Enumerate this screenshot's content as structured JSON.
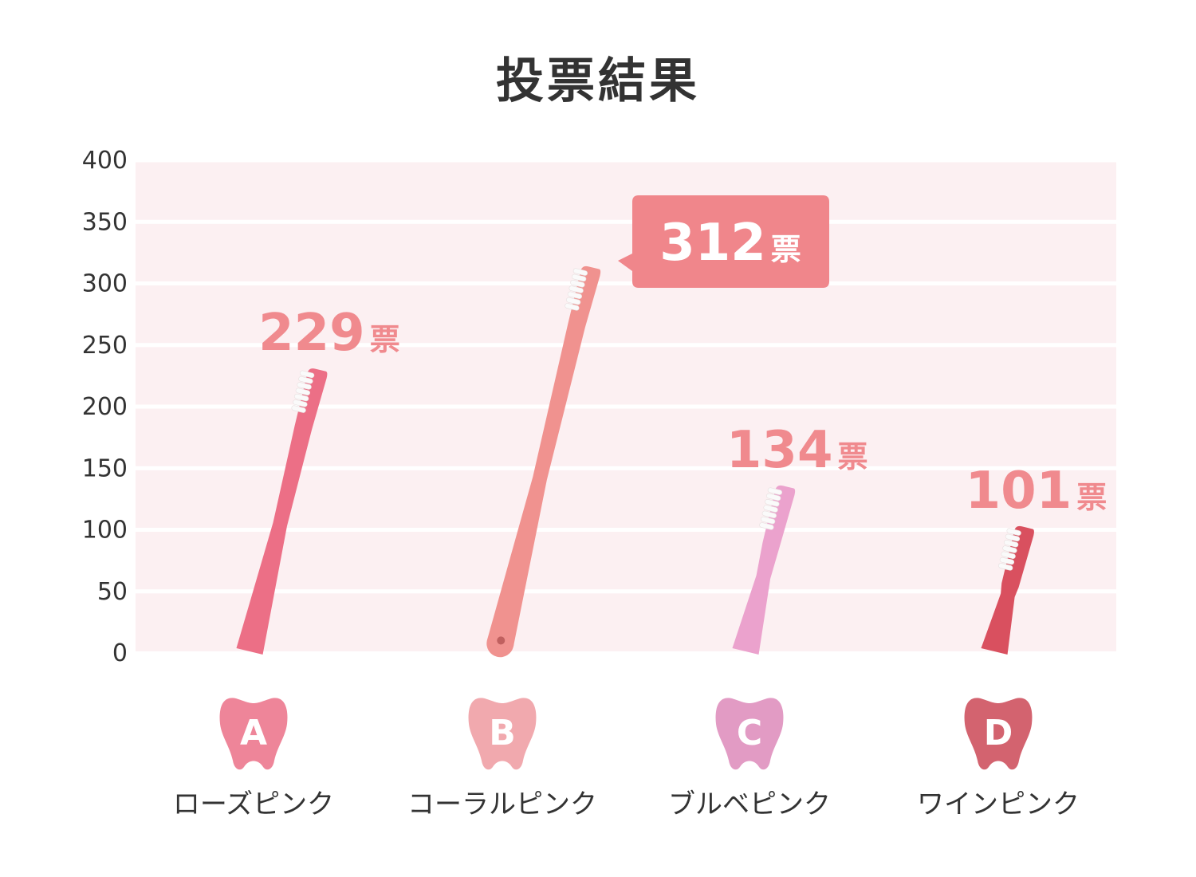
{
  "chart_data": {
    "type": "bar",
    "title": "投票結果",
    "ylim": [
      0,
      400
    ],
    "yticks": [
      0,
      50,
      100,
      150,
      200,
      250,
      300,
      350,
      400
    ],
    "grid": true,
    "unit": "票",
    "categories": [
      {
        "letter": "A",
        "name": "ローズピンク",
        "value": 229,
        "tooth_color": "#ee8599",
        "brush_color": "#ec6f86"
      },
      {
        "letter": "B",
        "name": "コーラルピンク",
        "value": 312,
        "tooth_color": "#f1a9ae",
        "brush_color": "#f0928f",
        "highlight": true
      },
      {
        "letter": "C",
        "name": "ブルベピンク",
        "value": 134,
        "tooth_color": "#e29bc4",
        "brush_color": "#eba2cd"
      },
      {
        "letter": "D",
        "name": "ワインピンク",
        "value": 101,
        "tooth_color": "#d3636f",
        "brush_color": "#d9505f"
      }
    ],
    "colors": {
      "plot_bg": "#fcf0f2",
      "label": "#f08a8e",
      "callout": "#f0868b",
      "text": "#333333"
    }
  }
}
